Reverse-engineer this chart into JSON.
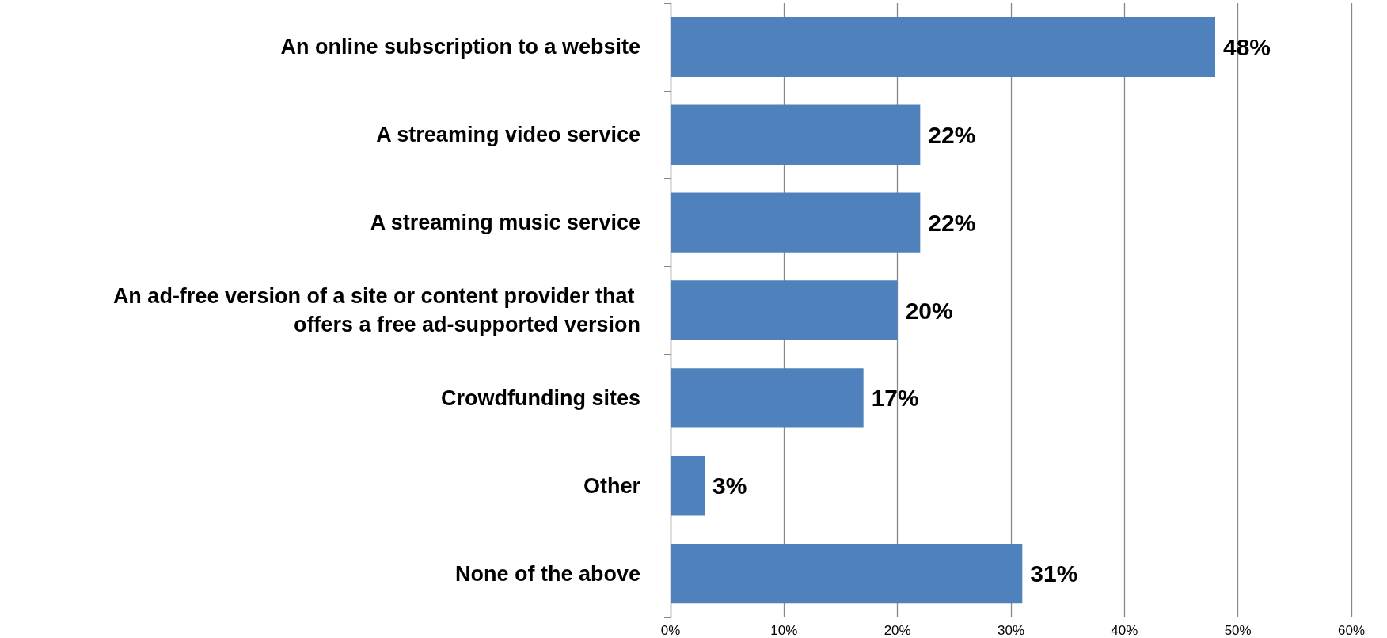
{
  "chart_data": {
    "type": "bar",
    "orientation": "horizontal",
    "categories": [
      "An online subscription to a website",
      "A streaming video service",
      "A streaming music service",
      "An ad-free version of a site or content provider that offers a free ad-supported version",
      "Crowdfunding sites",
      "Other",
      "None of the above"
    ],
    "values": [
      48,
      22,
      22,
      20,
      17,
      3,
      31
    ],
    "value_labels": [
      "48%",
      "22%",
      "22%",
      "20%",
      "17%",
      "3%",
      "31%"
    ],
    "color": "#4f81bd",
    "xlim": [
      0,
      60
    ],
    "xticks": [
      {
        "value": 0,
        "label": "0%"
      },
      {
        "value": 10,
        "label": "10%"
      },
      {
        "value": 20,
        "label": "20%"
      },
      {
        "value": 30,
        "label": "30%"
      },
      {
        "value": 40,
        "label": "40%"
      },
      {
        "value": 50,
        "label": "50%"
      },
      {
        "value": 60,
        "label": "60%"
      }
    ],
    "grid": "x"
  }
}
